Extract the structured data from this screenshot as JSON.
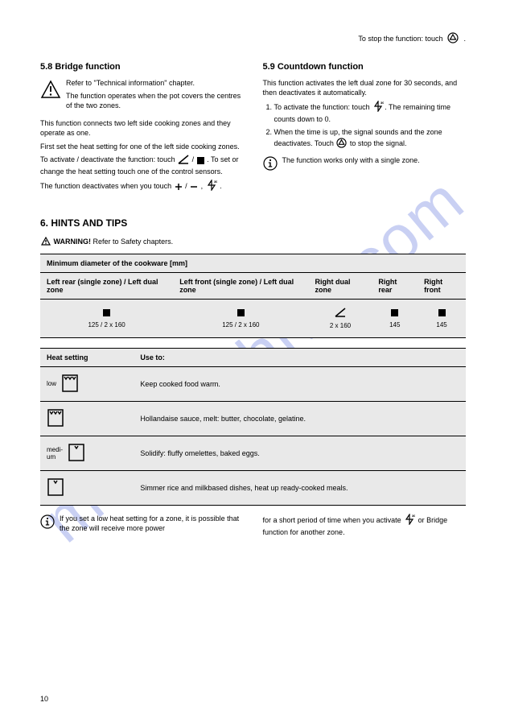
{
  "header": {
    "text": "To stop the function: touch",
    "icon": "stop-circle-icon"
  },
  "left": {
    "title": "5.8 Bridge function",
    "warn_p1": "Refer to \"Technical information\" chapter.",
    "warn_p2": "The function operates when the pot covers the centres of the two zones.",
    "p1": "This function connects two left side cooking zones and they operate as one.",
    "p2": "First set the heat setting for one of the left side cooking zones.",
    "toggle_line": "To activate / deactivate the function: touch",
    "toggle_after": ". To set or change the heat setting touch one of the control sensors.",
    "deact_note": "The function deactivates when you touch"
  },
  "right": {
    "title": "5.9 Countdown function",
    "p1": "This function activates the left dual zone for 30 seconds, and then deactivates it automatically.",
    "ol_1a": "To activate the function: touch",
    "ol_1b": "The remaining time counts down to 0.",
    "ol_2": "When the time is up, the signal sounds and the zone deactivates. Touch",
    "ol_2b": "to stop the signal.",
    "info": "The function works only with a single zone."
  },
  "section6": {
    "title": "6. HINTS AND TIPS",
    "lead_label": "WARNING!",
    "lead_text": "Refer to Safety chapters."
  },
  "table1": {
    "h1": "Minimum diameter of the cookware [mm]",
    "h2": "Left rear (single zone) / Left dual zone",
    "h3": "Left front (single zone) / Left dual zone",
    "h4": "Right dual zone",
    "h5": "Right rear",
    "h6": "Right front",
    "r": [
      "125 / 2 x 160",
      "125 / 2 x 160",
      "2 x 160",
      "145",
      "145"
    ]
  },
  "table2": {
    "h1": "Heat setting",
    "h2": "Use to:",
    "rows": [
      {
        "level": 1,
        "notches": 3,
        "text": "Keep cooked food warm."
      },
      {
        "level": 2,
        "notches": 3,
        "text": "Hollandaise sauce, melt: butter, chocolate, gelatine."
      },
      {
        "level": 3,
        "notches": 1,
        "text": "Solidify: fluffy omelettes, baked eggs."
      },
      {
        "level": 4,
        "notches": 1,
        "text": "Simmer rice and milkbased dishes, heat up ready-cooked meals."
      }
    ],
    "low_label": "low",
    "mid_label": "medi-\num"
  },
  "footer_left": {
    "text": "If you set a low heat setting for a zone, it is possible that the zone will receive more power"
  },
  "footer_right": {
    "text_a": "for a short period of time when you activate",
    "text_b": "or Bridge function for another zone."
  },
  "page_number": "10",
  "colors": {
    "watermark": "rgba(100,120,220,0.35)",
    "table_bg": "#e9e9e9",
    "border": "#000000"
  }
}
